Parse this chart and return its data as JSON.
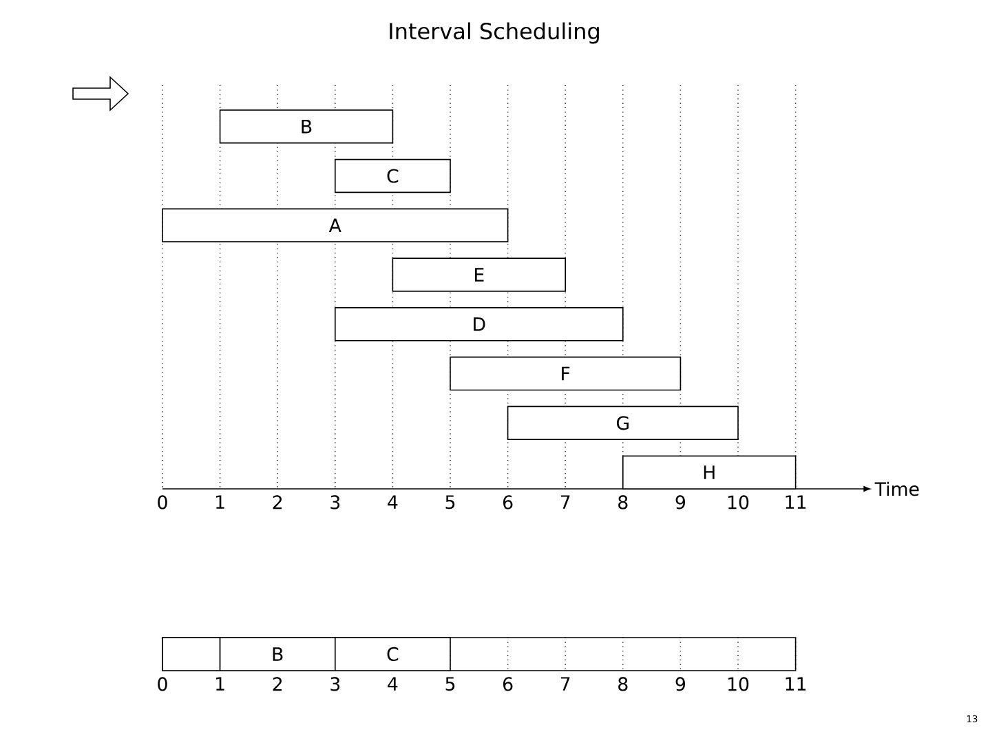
{
  "chart_data": [
    {
      "type": "bar",
      "title": "Interval Scheduling",
      "orientation": "horizontal",
      "categories": [
        null,
        null,
        null,
        null,
        null,
        null,
        null,
        null
      ],
      "values": [
        3,
        2,
        6,
        3,
        5,
        4,
        4,
        3
      ],
      "base": [
        1,
        3,
        0,
        4,
        3,
        5,
        6,
        8
      ],
      "value_labels": [
        "B",
        "C",
        "A",
        "E",
        "D",
        "F",
        "G",
        "H"
      ],
      "color": "#ffffff",
      "xlim": [
        0,
        12.2
      ],
      "xticks": [
        0,
        1,
        2,
        3,
        4,
        5,
        6,
        7,
        8,
        9,
        10,
        11
      ],
      "xlabel": "Time",
      "grid": "x",
      "tick_labels": "x"
    },
    {
      "type": "bar",
      "orientation": "horizontal",
      "stacked": true,
      "categories": [
        null
      ],
      "series": [
        {
          "values": [
            1
          ],
          "color": "#ffffff"
        },
        {
          "values": [
            2
          ],
          "value_labels": [
            "B"
          ],
          "color": "#ffffff"
        },
        {
          "values": [
            2
          ],
          "value_labels": [
            "C"
          ],
          "color": "#ffffff"
        }
      ],
      "xlim": [
        0,
        11
      ],
      "xticks": [
        0,
        1,
        2,
        3,
        4,
        5,
        6,
        7,
        8,
        9,
        10,
        11
      ],
      "grid": "x",
      "tick_labels": "x",
      "annotations": [
        "13"
      ]
    }
  ]
}
